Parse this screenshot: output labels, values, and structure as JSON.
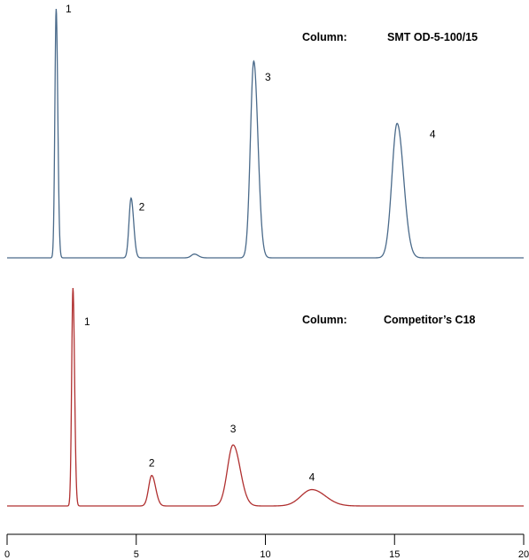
{
  "chart_data": [
    {
      "type": "line",
      "column_label": "Column:",
      "column_name": "SMT OD-5-100/15",
      "color": "#4a6a8a",
      "x_range": [
        0,
        20
      ],
      "peaks": [
        {
          "label": "1",
          "rt": 1.9,
          "height": 1.0,
          "width": 0.05
        },
        {
          "label": "2",
          "rt": 4.8,
          "height": 0.24,
          "width": 0.08
        },
        {
          "label": "3",
          "rt": 9.55,
          "height": 0.79,
          "width": 0.13
        },
        {
          "label": "4",
          "rt": 15.1,
          "height": 0.54,
          "width": 0.2
        }
      ],
      "minor_peaks": [
        {
          "rt": 7.25,
          "height": 0.015,
          "width": 0.12
        }
      ]
    },
    {
      "type": "line",
      "column_label": "Column:",
      "column_name": "Competitor’s C18",
      "color": "#b03030",
      "x_range": [
        0,
        20
      ],
      "peaks": [
        {
          "label": "1",
          "rt": 2.55,
          "height": 1.0,
          "width": 0.05
        },
        {
          "label": "2",
          "rt": 5.6,
          "height": 0.14,
          "width": 0.12
        },
        {
          "label": "3",
          "rt": 8.75,
          "height": 0.28,
          "width": 0.22
        },
        {
          "label": "4",
          "rt": 11.8,
          "height": 0.075,
          "width": 0.42
        }
      ],
      "minor_peaks": []
    }
  ],
  "x_axis": {
    "ticks": [
      0,
      5,
      10,
      15,
      20
    ],
    "tick_labels": [
      "0",
      "5",
      "10",
      "15",
      "20"
    ]
  }
}
